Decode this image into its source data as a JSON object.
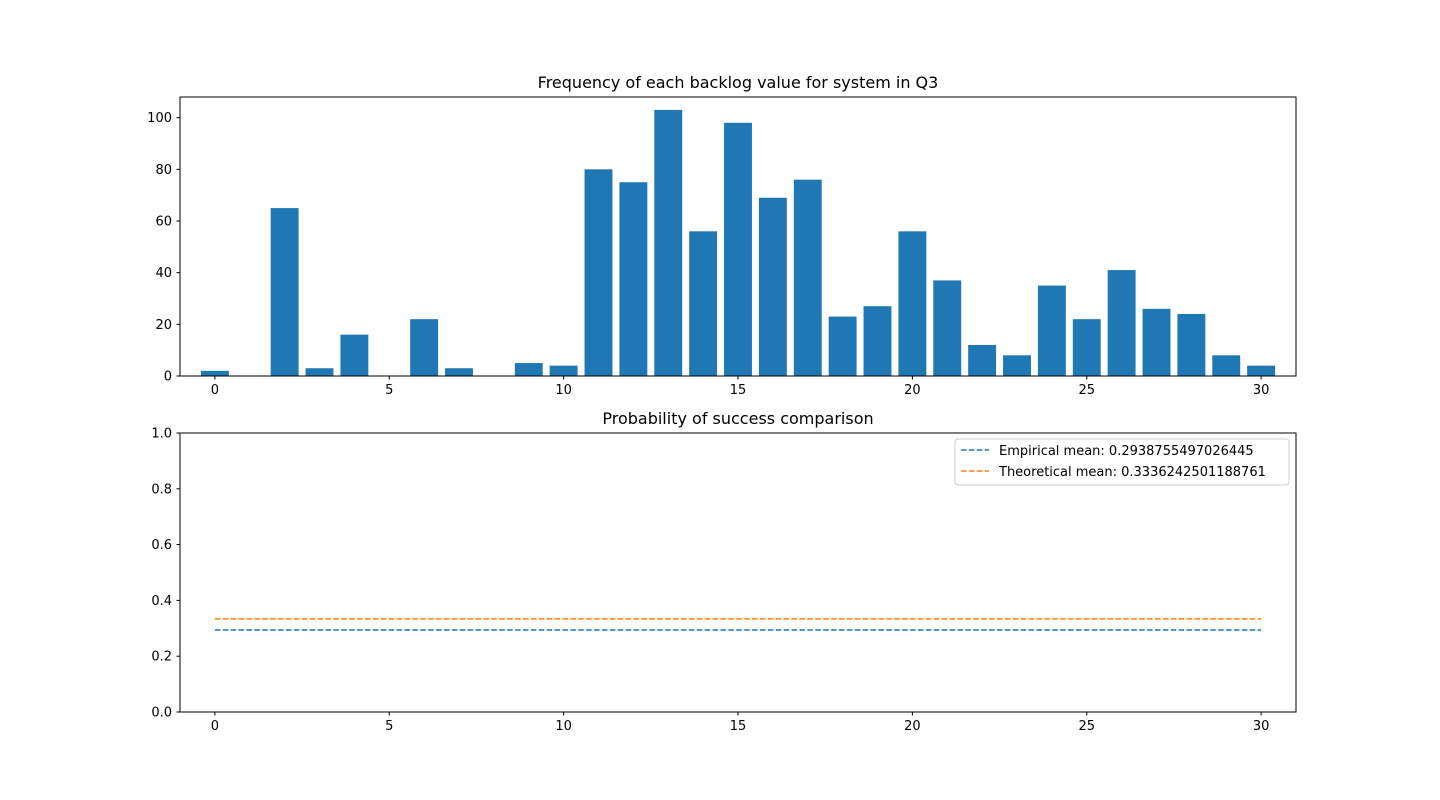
{
  "chart_data": [
    {
      "type": "bar",
      "title": "Frequency of each backlog value for system in Q3",
      "xlabel": "",
      "ylabel": "",
      "x": [
        0,
        1,
        2,
        3,
        4,
        5,
        6,
        7,
        8,
        9,
        10,
        11,
        12,
        13,
        14,
        15,
        16,
        17,
        18,
        19,
        20,
        21,
        22,
        23,
        24,
        25,
        26,
        27,
        28,
        29,
        30
      ],
      "values": [
        2,
        0,
        65,
        3,
        16,
        0,
        22,
        3,
        0,
        5,
        4,
        80,
        75,
        103,
        56,
        98,
        69,
        76,
        23,
        27,
        56,
        37,
        12,
        8,
        35,
        22,
        41,
        26,
        24,
        8,
        4
      ],
      "xlim": [
        -1,
        31
      ],
      "ylim": [
        0,
        108
      ],
      "xticks": [
        0,
        5,
        10,
        15,
        20,
        25,
        30
      ],
      "yticks": [
        0,
        20,
        40,
        60,
        80,
        100
      ],
      "color": "#1f77b4",
      "grid": false
    },
    {
      "type": "line",
      "title": "Probability of success comparison",
      "xlabel": "",
      "ylabel": "",
      "xlim": [
        -1,
        31
      ],
      "ylim": [
        0,
        1
      ],
      "xticks": [
        0,
        5,
        10,
        15,
        20,
        25,
        30
      ],
      "yticks": [
        "0.0",
        "0.2",
        "0.4",
        "0.6",
        "0.8",
        "1.0"
      ],
      "series": [
        {
          "name": "Empirical mean: 0.2938755497026445",
          "x": [
            0,
            30
          ],
          "values": [
            0.2938755497026445,
            0.2938755497026445
          ],
          "color": "#1f77b4",
          "style": "dashed"
        },
        {
          "name": "Theoretical mean: 0.3336242501188761",
          "x": [
            0,
            30
          ],
          "values": [
            0.3336242501188761,
            0.3336242501188761
          ],
          "color": "#ff7f0e",
          "style": "dashed"
        }
      ],
      "legend": "top-right",
      "grid": false
    }
  ]
}
